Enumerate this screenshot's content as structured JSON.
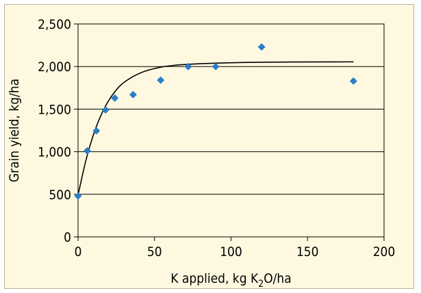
{
  "chart_data": {
    "type": "scatter",
    "title": "",
    "xlabel_main": "K applied, kg K",
    "xlabel_sub": "2",
    "xlabel_tail": "O/ha",
    "ylabel": "Grain yield, kg/ha",
    "xlim": [
      0,
      200
    ],
    "ylim": [
      0,
      2500
    ],
    "x_ticks": [
      0,
      50,
      100,
      150,
      200
    ],
    "x_tick_labels": [
      "0",
      "50",
      "100",
      "150",
      "200"
    ],
    "y_ticks": [
      0,
      500,
      1000,
      1500,
      2000,
      2500
    ],
    "y_tick_labels": [
      "0",
      "500",
      "1,000",
      "1,500",
      "2,000",
      "2,500"
    ],
    "grid": "horizontal",
    "legend": "none",
    "points": [
      {
        "x": 0,
        "y": 480
      },
      {
        "x": 6,
        "y": 1010
      },
      {
        "x": 12,
        "y": 1245
      },
      {
        "x": 18,
        "y": 1490
      },
      {
        "x": 24,
        "y": 1630
      },
      {
        "x": 36,
        "y": 1670
      },
      {
        "x": 54,
        "y": 1840
      },
      {
        "x": 72,
        "y": 2000
      },
      {
        "x": 90,
        "y": 2000
      },
      {
        "x": 120,
        "y": 2230
      },
      {
        "x": 180,
        "y": 1830
      }
    ],
    "fit_curve": [
      {
        "x": 0,
        "y": 490
      },
      {
        "x": 5,
        "y": 900
      },
      {
        "x": 10,
        "y": 1205
      },
      {
        "x": 15,
        "y": 1435
      },
      {
        "x": 20,
        "y": 1605
      },
      {
        "x": 25,
        "y": 1730
      },
      {
        "x": 30,
        "y": 1820
      },
      {
        "x": 40,
        "y": 1925
      },
      {
        "x": 50,
        "y": 1980
      },
      {
        "x": 60,
        "y": 2012
      },
      {
        "x": 75,
        "y": 2030
      },
      {
        "x": 90,
        "y": 2040
      },
      {
        "x": 110,
        "y": 2048
      },
      {
        "x": 130,
        "y": 2052
      },
      {
        "x": 150,
        "y": 2054
      },
      {
        "x": 180,
        "y": 2055
      }
    ],
    "colors": {
      "background": "#fdf8df",
      "marker": "#2a7fc4",
      "curve": "#000000",
      "grid": "#000000"
    }
  }
}
